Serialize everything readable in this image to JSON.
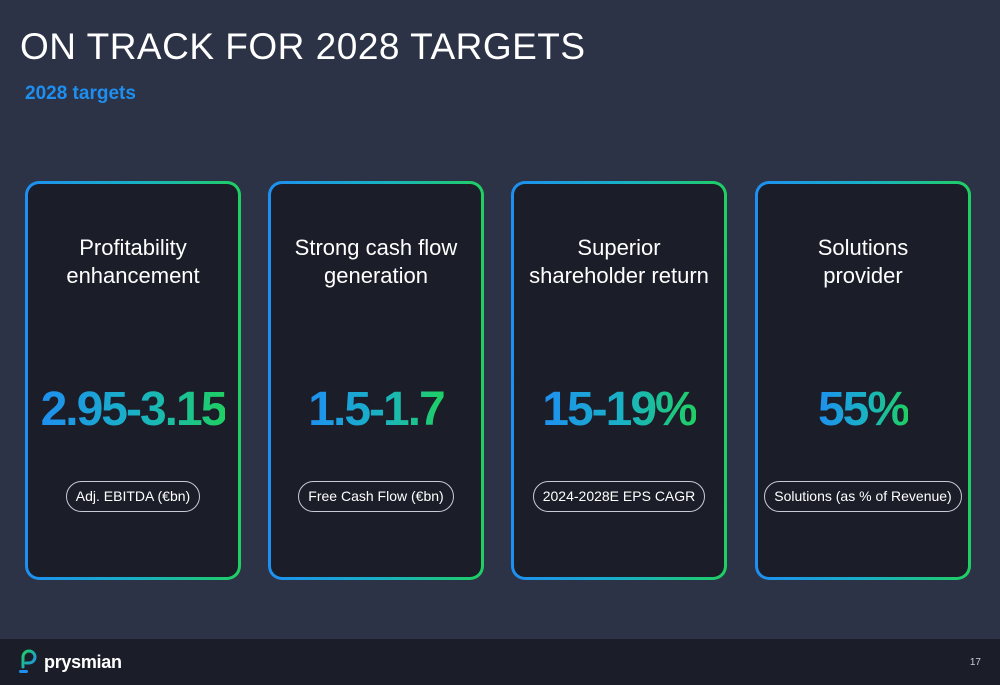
{
  "header": {
    "title": "ON TRACK FOR 2028 TARGETS",
    "subtitle": "2028 targets"
  },
  "cards": [
    {
      "title": "Profitability\nenhancement",
      "value": "2.95-3.15",
      "metric": "Adj. EBITDA (€bn)"
    },
    {
      "title": "Strong cash flow\ngeneration",
      "value": "1.5-1.7",
      "metric": "Free Cash Flow (€bn)"
    },
    {
      "title": "Superior\nshareholder return",
      "value": "15-19%",
      "metric": "2024-2028E EPS CAGR"
    },
    {
      "title": "Solutions\nprovider",
      "value": "55%",
      "metric": "Solutions (as % of Revenue)"
    }
  ],
  "footer": {
    "logo_text": "prysmian",
    "page_number": "17"
  },
  "colors": {
    "background": "#2c3346",
    "accent_blue": "#1e8ff0",
    "accent_green": "#1fcf62",
    "card_background": "#1b1d28"
  }
}
